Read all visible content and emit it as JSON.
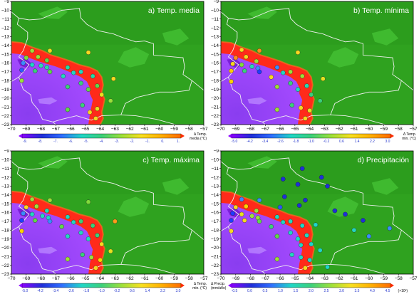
{
  "figure": {
    "x_tick_labels": [
      "−70",
      "−69",
      "−68",
      "−67",
      "−66",
      "−65",
      "−64",
      "−63",
      "−62",
      "−61",
      "−60",
      "−59",
      "−58",
      "−57"
    ],
    "y_tick_labels": [
      "−9",
      "−10",
      "−11",
      "−12",
      "−13",
      "−14",
      "−15",
      "−16",
      "−17",
      "−18",
      "−19",
      "−20",
      "−21",
      "−22",
      "−23"
    ],
    "colors": {
      "lowland_green": "#2fa21f",
      "highland_purple": "#a64bff",
      "escarpment_red": "#ff2a1a",
      "border_line": "#f0f0f0"
    }
  },
  "panels": [
    {
      "title": "a) Temp. media",
      "colorbar_label": [
        "Δ Temp.",
        "media (°C)"
      ],
      "colorbar_ticks": [
        "-9.",
        "-8.",
        "-7.",
        "-6.",
        "-5.",
        "-4.",
        "-3.",
        "-2.",
        "-1.",
        "0.",
        "1."
      ],
      "stations": [
        {
          "lon": -68.6,
          "lat": -14.6,
          "color": "#9be03a"
        },
        {
          "lon": -67.4,
          "lat": -14.6,
          "color": "#e8e020"
        },
        {
          "lon": -64.8,
          "lat": -14.8,
          "color": "#f8d820"
        },
        {
          "lon": -69.0,
          "lat": -15.4,
          "color": "#7fdb3a"
        },
        {
          "lon": -68.2,
          "lat": -15.3,
          "color": "#9be03a"
        },
        {
          "lon": -67.6,
          "lat": -15.7,
          "color": "#5fd84a"
        },
        {
          "lon": -69.2,
          "lat": -16.0,
          "color": "#3a8cff"
        },
        {
          "lon": -68.6,
          "lat": -16.2,
          "color": "#1fd6c6"
        },
        {
          "lon": -68.0,
          "lat": -16.3,
          "color": "#28d8b0"
        },
        {
          "lon": -67.6,
          "lat": -16.5,
          "color": "#28d8a6"
        },
        {
          "lon": -66.2,
          "lat": -16.5,
          "color": "#28d8a6"
        },
        {
          "lon": -69.3,
          "lat": -16.8,
          "color": "#2f55ff"
        },
        {
          "lon": -68.4,
          "lat": -16.9,
          "color": "#3ad07a"
        },
        {
          "lon": -67.4,
          "lat": -17.0,
          "color": "#5fd84a"
        },
        {
          "lon": -65.8,
          "lat": -17.1,
          "color": "#24d6c0"
        },
        {
          "lon": -65.3,
          "lat": -17.0,
          "color": "#24d6c0"
        },
        {
          "lon": -64.5,
          "lat": -17.5,
          "color": "#28d8a6"
        },
        {
          "lon": -63.1,
          "lat": -17.8,
          "color": "#f8d820"
        },
        {
          "lon": -66.5,
          "lat": -17.5,
          "color": "#24d6c0"
        },
        {
          "lon": -69.3,
          "lat": -18.0,
          "color": "#9be03a"
        },
        {
          "lon": -65.3,
          "lat": -18.3,
          "color": "#3ad07a"
        },
        {
          "lon": -64.2,
          "lat": -18.6,
          "color": "#5fd84a"
        },
        {
          "lon": -66.2,
          "lat": -18.7,
          "color": "#3ad07a"
        },
        {
          "lon": -64.8,
          "lat": -19.0,
          "color": "#5fd84a"
        },
        {
          "lon": -63.9,
          "lat": -19.6,
          "color": "#e8e020"
        },
        {
          "lon": -63.3,
          "lat": -20.3,
          "color": "#9be03a"
        },
        {
          "lon": -65.2,
          "lat": -20.8,
          "color": "#3ad07a"
        },
        {
          "lon": -64.2,
          "lat": -21.2,
          "color": "#e8e020"
        },
        {
          "lon": -66.2,
          "lat": -21.3,
          "color": "#5fd84a"
        },
        {
          "lon": -64.7,
          "lat": -21.6,
          "color": "#f8d820"
        },
        {
          "lon": -64.3,
          "lat": -22.3,
          "color": "#f8d820"
        }
      ]
    },
    {
      "title": "b) Temp. mínima",
      "colorbar_label": [
        "Δ Temp.",
        "min. (°C)"
      ],
      "colorbar_ticks": [
        "-5.0",
        "-4.2",
        "-3.4",
        "-2.6",
        "-1.8",
        "-1.0",
        "-0.2",
        "0.6",
        "1.4",
        "2.2",
        "3.0"
      ],
      "stations": [
        {
          "lon": -68.6,
          "lat": -14.5,
          "color": "#f8d820"
        },
        {
          "lon": -67.4,
          "lat": -14.6,
          "color": "#ff8c1a"
        },
        {
          "lon": -64.8,
          "lat": -14.8,
          "color": "#f8d820"
        },
        {
          "lon": -69.0,
          "lat": -15.4,
          "color": "#ff8c1a"
        },
        {
          "lon": -68.3,
          "lat": -15.3,
          "color": "#f8d820"
        },
        {
          "lon": -67.6,
          "lat": -15.8,
          "color": "#9be03a"
        },
        {
          "lon": -69.2,
          "lat": -16.1,
          "color": "#f8d820"
        },
        {
          "lon": -68.6,
          "lat": -16.2,
          "color": "#7fdb3a"
        },
        {
          "lon": -67.9,
          "lat": -16.4,
          "color": "#28d8b0"
        },
        {
          "lon": -67.5,
          "lat": -16.6,
          "color": "#3a8cff"
        },
        {
          "lon": -66.2,
          "lat": -16.5,
          "color": "#3a8cff"
        },
        {
          "lon": -69.3,
          "lat": -16.9,
          "color": "#ffcc00"
        },
        {
          "lon": -68.4,
          "lat": -16.9,
          "color": "#3ad07a"
        },
        {
          "lon": -67.4,
          "lat": -17.0,
          "color": "#1f3cff"
        },
        {
          "lon": -65.8,
          "lat": -17.1,
          "color": "#24d6c0"
        },
        {
          "lon": -65.3,
          "lat": -17.0,
          "color": "#9be03a"
        },
        {
          "lon": -64.5,
          "lat": -17.5,
          "color": "#9be03a"
        },
        {
          "lon": -63.1,
          "lat": -17.8,
          "color": "#e8e020"
        },
        {
          "lon": -66.6,
          "lat": -17.6,
          "color": "#f8d820"
        },
        {
          "lon": -69.3,
          "lat": -18.1,
          "color": "#ffd000"
        },
        {
          "lon": -65.3,
          "lat": -18.3,
          "color": "#3ad07a"
        },
        {
          "lon": -64.2,
          "lat": -18.6,
          "color": "#28d8b0"
        },
        {
          "lon": -66.2,
          "lat": -18.7,
          "color": "#9be03a"
        },
        {
          "lon": -64.8,
          "lat": -19.0,
          "color": "#24d6c0"
        },
        {
          "lon": -63.9,
          "lat": -19.6,
          "color": "#3ad07a"
        },
        {
          "lon": -63.3,
          "lat": -20.3,
          "color": "#3ad07a"
        },
        {
          "lon": -65.2,
          "lat": -20.8,
          "color": "#3ad07a"
        },
        {
          "lon": -64.6,
          "lat": -21.1,
          "color": "#f8d820"
        },
        {
          "lon": -66.2,
          "lat": -21.3,
          "color": "#9be03a"
        },
        {
          "lon": -64.0,
          "lat": -21.4,
          "color": "#e8e020"
        },
        {
          "lon": -64.3,
          "lat": -22.3,
          "color": "#f8d820"
        }
      ]
    },
    {
      "title": "c) Temp. máxima",
      "colorbar_label": [
        "Δ Temp.",
        "min. (°C)"
      ],
      "colorbar_ticks": [
        "-5.0",
        "-4.2",
        "-3.4",
        "-2.6",
        "-1.8",
        "-1.0",
        "-0.2",
        "0.6",
        "1.4",
        "2.2",
        "3.0"
      ],
      "stations": [
        {
          "lon": -68.6,
          "lat": -14.5,
          "color": "#9be03a"
        },
        {
          "lon": -67.4,
          "lat": -14.6,
          "color": "#9be03a"
        },
        {
          "lon": -64.8,
          "lat": -14.8,
          "color": "#7fdb3a"
        },
        {
          "lon": -69.0,
          "lat": -15.4,
          "color": "#f8d820"
        },
        {
          "lon": -68.3,
          "lat": -15.3,
          "color": "#9be03a"
        },
        {
          "lon": -67.6,
          "lat": -15.8,
          "color": "#28d8b0"
        },
        {
          "lon": -69.2,
          "lat": -16.1,
          "color": "#3a8cff"
        },
        {
          "lon": -68.6,
          "lat": -16.2,
          "color": "#24d6c0"
        },
        {
          "lon": -67.9,
          "lat": -16.4,
          "color": "#24d6c0"
        },
        {
          "lon": -67.5,
          "lat": -16.6,
          "color": "#1fd6c6"
        },
        {
          "lon": -66.2,
          "lat": -16.5,
          "color": "#24d6c0"
        },
        {
          "lon": -69.3,
          "lat": -16.9,
          "color": "#1f3cff"
        },
        {
          "lon": -68.4,
          "lat": -16.9,
          "color": "#5fd84a"
        },
        {
          "lon": -67.4,
          "lat": -17.0,
          "color": "#3a8cff"
        },
        {
          "lon": -65.8,
          "lat": -17.1,
          "color": "#24d6c0"
        },
        {
          "lon": -65.3,
          "lat": -17.0,
          "color": "#3ad07a"
        },
        {
          "lon": -64.5,
          "lat": -17.5,
          "color": "#3ad07a"
        },
        {
          "lon": -63.0,
          "lat": -17.0,
          "color": "#ff9a1a"
        },
        {
          "lon": -66.6,
          "lat": -17.6,
          "color": "#5fd84a"
        },
        {
          "lon": -69.3,
          "lat": -18.1,
          "color": "#ffd000"
        },
        {
          "lon": -65.3,
          "lat": -18.3,
          "color": "#24d6c0"
        },
        {
          "lon": -64.2,
          "lat": -18.6,
          "color": "#3ad07a"
        },
        {
          "lon": -66.2,
          "lat": -18.7,
          "color": "#24d6c0"
        },
        {
          "lon": -64.8,
          "lat": -19.0,
          "color": "#24d6c0"
        },
        {
          "lon": -63.9,
          "lat": -19.6,
          "color": "#f8d820"
        },
        {
          "lon": -63.3,
          "lat": -20.4,
          "color": "#e8e020"
        },
        {
          "lon": -65.2,
          "lat": -20.8,
          "color": "#3ad07a"
        },
        {
          "lon": -64.6,
          "lat": -21.1,
          "color": "#9be03a"
        },
        {
          "lon": -66.2,
          "lat": -21.3,
          "color": "#9be03a"
        },
        {
          "lon": -64.0,
          "lat": -21.4,
          "color": "#ffd000"
        },
        {
          "lon": -64.3,
          "lat": -22.3,
          "color": "#f8d820"
        }
      ]
    },
    {
      "title": "d) Precipitación",
      "colorbar_label": [
        "Δ Precip.",
        "(mm/año)"
      ],
      "colorbar_ticks": [
        "-0.5",
        "0.0",
        "0.5",
        "1.0",
        "1.5",
        "2.0",
        "2.5",
        "3.0",
        "3.5",
        "4.0",
        "4.5"
      ],
      "colorbar_exponent": "(×10²)",
      "stations": [
        {
          "lon": -64.5,
          "lat": -11.0,
          "color": "#1f2fd8"
        },
        {
          "lon": -63.2,
          "lat": -12.0,
          "color": "#1f2fd8"
        },
        {
          "lon": -65.8,
          "lat": -12.2,
          "color": "#1f2fd8"
        },
        {
          "lon": -64.8,
          "lat": -12.8,
          "color": "#1f2fd8"
        },
        {
          "lon": -62.8,
          "lat": -13.0,
          "color": "#1f2fd8"
        },
        {
          "lon": -68.6,
          "lat": -14.5,
          "color": "#3a8cff"
        },
        {
          "lon": -67.4,
          "lat": -14.6,
          "color": "#3a8cff"
        },
        {
          "lon": -65.7,
          "lat": -14.2,
          "color": "#1f2fd8"
        },
        {
          "lon": -64.3,
          "lat": -14.6,
          "color": "#1f2fd8"
        },
        {
          "lon": -69.0,
          "lat": -15.4,
          "color": "#f8d820"
        },
        {
          "lon": -68.3,
          "lat": -15.3,
          "color": "#ffd000"
        },
        {
          "lon": -67.6,
          "lat": -15.8,
          "color": "#9be03a"
        },
        {
          "lon": -66.0,
          "lat": -15.4,
          "color": "#2f55ff"
        },
        {
          "lon": -64.7,
          "lat": -15.2,
          "color": "#1f2fd8"
        },
        {
          "lon": -62.3,
          "lat": -15.8,
          "color": "#1f2fd8"
        },
        {
          "lon": -61.6,
          "lat": -16.2,
          "color": "#1f2fd8"
        },
        {
          "lon": -60.4,
          "lat": -16.9,
          "color": "#1f2fd8"
        },
        {
          "lon": -58.6,
          "lat": -17.8,
          "color": "#3a8cff"
        },
        {
          "lon": -69.2,
          "lat": -16.1,
          "color": "#1f3cff"
        },
        {
          "lon": -68.6,
          "lat": -16.2,
          "color": "#e8e020"
        },
        {
          "lon": -67.9,
          "lat": -16.4,
          "color": "#9be03a"
        },
        {
          "lon": -67.5,
          "lat": -16.6,
          "color": "#9be03a"
        },
        {
          "lon": -66.2,
          "lat": -16.5,
          "color": "#24d6c0"
        },
        {
          "lon": -69.3,
          "lat": -16.9,
          "color": "#1f3cff"
        },
        {
          "lon": -68.4,
          "lat": -16.9,
          "color": "#f8d820"
        },
        {
          "lon": -67.4,
          "lat": -17.0,
          "color": "#5fd84a"
        },
        {
          "lon": -65.8,
          "lat": -17.1,
          "color": "#24d6c0"
        },
        {
          "lon": -65.3,
          "lat": -17.0,
          "color": "#24d6c0"
        },
        {
          "lon": -64.5,
          "lat": -17.5,
          "color": "#1fd6c6"
        },
        {
          "lon": -63.6,
          "lat": -17.4,
          "color": "#1fd6c6"
        },
        {
          "lon": -61.0,
          "lat": -18.0,
          "color": "#24d6c0"
        },
        {
          "lon": -60.0,
          "lat": -18.7,
          "color": "#3a8cff"
        },
        {
          "lon": -66.6,
          "lat": -17.6,
          "color": "#3ad07a"
        },
        {
          "lon": -69.3,
          "lat": -18.1,
          "color": "#f8d820"
        },
        {
          "lon": -65.3,
          "lat": -18.3,
          "color": "#1fd6c6"
        },
        {
          "lon": -64.2,
          "lat": -18.6,
          "color": "#24d6c0"
        },
        {
          "lon": -66.2,
          "lat": -18.7,
          "color": "#5fd84a"
        },
        {
          "lon": -64.8,
          "lat": -19.0,
          "color": "#1fd6c6"
        },
        {
          "lon": -63.9,
          "lat": -19.6,
          "color": "#1fd6c6"
        },
        {
          "lon": -63.3,
          "lat": -20.3,
          "color": "#1fd6c6"
        },
        {
          "lon": -64.6,
          "lat": -19.7,
          "color": "#24d6c0"
        },
        {
          "lon": -65.2,
          "lat": -20.8,
          "color": "#24d6c0"
        },
        {
          "lon": -64.6,
          "lat": -21.1,
          "color": "#24d6c0"
        },
        {
          "lon": -66.2,
          "lat": -21.3,
          "color": "#9be03a"
        },
        {
          "lon": -64.0,
          "lat": -21.4,
          "color": "#1fd6c6"
        },
        {
          "lon": -64.3,
          "lat": -22.3,
          "color": "#f8d820"
        },
        {
          "lon": -62.8,
          "lat": -22.2,
          "color": "#1fd6c6"
        }
      ]
    }
  ]
}
